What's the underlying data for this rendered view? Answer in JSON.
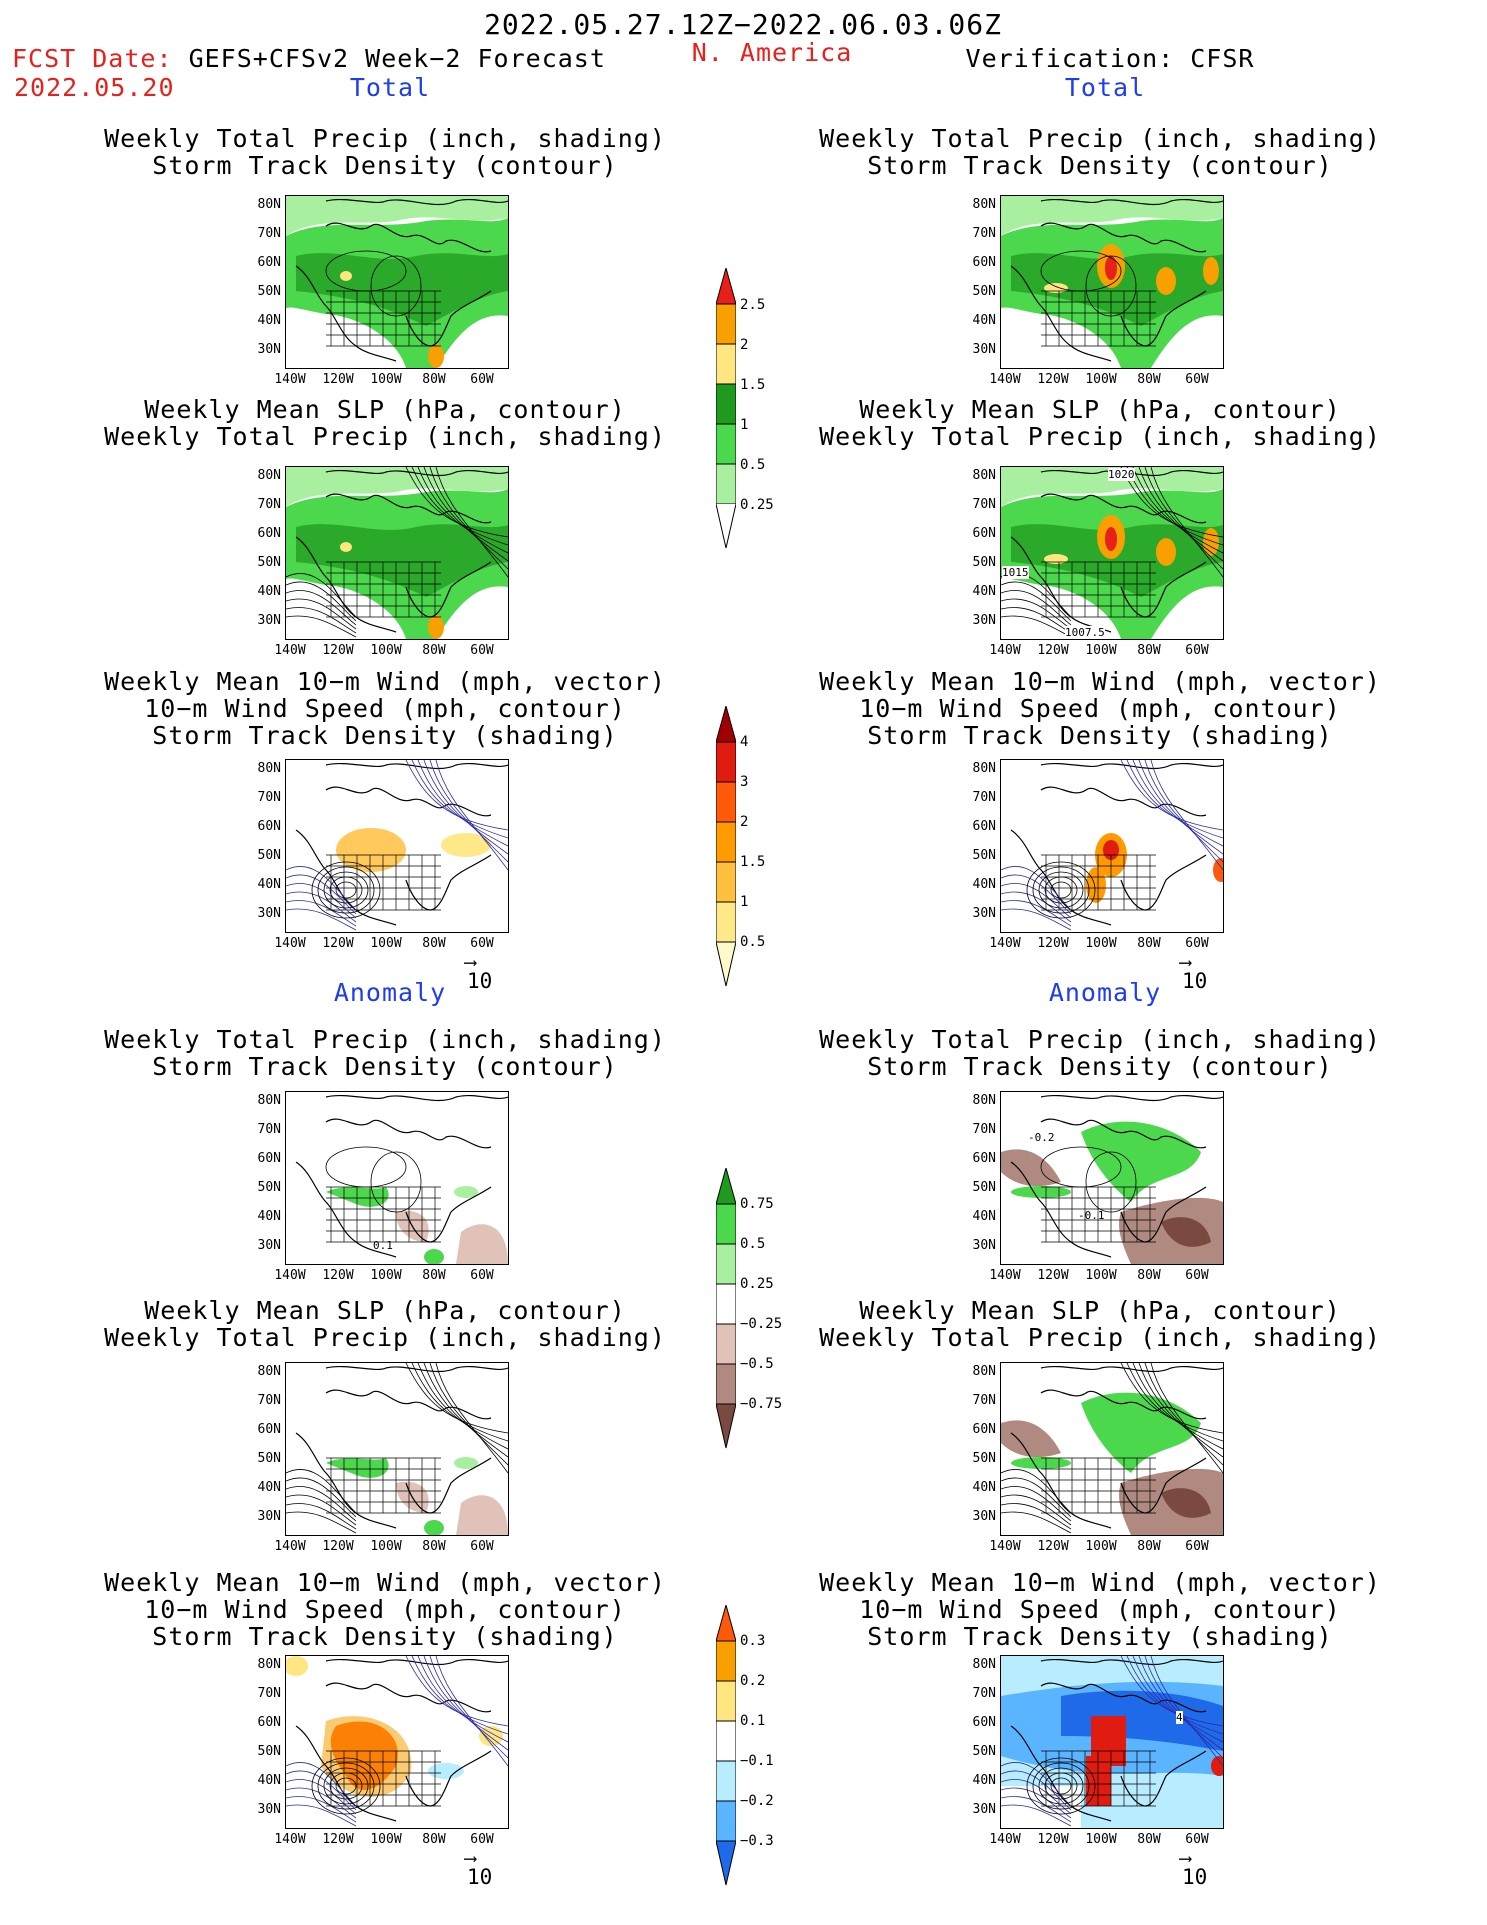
{
  "header": {
    "date_range": "2022.05.27.12Z−2022.06.03.06Z",
    "fcst_label": "FCST Date:",
    "fcst_model": "GEFS+CFSv2 Week−2 Forecast",
    "fcst_date": "2022.05.20",
    "region": "N. America",
    "verification": "Verification: CFSR"
  },
  "sections": {
    "total": "Total",
    "anomaly": "Anomaly"
  },
  "panel_titles": {
    "precip_track": [
      "Weekly Total Precip (inch, shading)",
      "Storm Track Density (contour)"
    ],
    "slp_precip": [
      "Weekly Mean SLP (hPa, contour)",
      "Weekly Total Precip (inch, shading)"
    ],
    "wind_track": [
      "Weekly Mean 10−m Wind (mph, vector)",
      "10−m Wind Speed (mph, contour)",
      "Storm Track Density (shading)"
    ]
  },
  "axes": {
    "lat": [
      "80N",
      "70N",
      "60N",
      "50N",
      "40N",
      "30N"
    ],
    "lon": [
      "140W",
      "120W",
      "100W",
      "80W",
      "60W"
    ]
  },
  "vector_ref": "10",
  "contour_labels": {
    "slp_high": "1020",
    "slp_mid": "1015",
    "slp_low": "1007.5",
    "anom_minus": "-0.2",
    "anom_minus_b": "-0.1",
    "anom_plus": "0.1",
    "track_4": "4"
  },
  "colorbars": {
    "precip_total": {
      "labels": [
        "2.5",
        "2",
        "1.5",
        "1",
        "0.5",
        "0.25"
      ],
      "colors": [
        "#e8201c",
        "#f7a000",
        "#ffe680",
        "#1f9a1f",
        "#4cd84c",
        "#a8f0a0"
      ]
    },
    "track_total": {
      "labels": [
        "4",
        "3",
        "2",
        "1.5",
        "1",
        "0.5"
      ],
      "colors": [
        "#a00000",
        "#e01c10",
        "#ff5a0a",
        "#ff9a00",
        "#ffc040",
        "#ffe888",
        "#fffacc"
      ]
    },
    "precip_anom": {
      "labels": [
        "0.75",
        "0.5",
        "0.25",
        "−0.25",
        "−0.5",
        "−0.75"
      ],
      "colors": [
        "#1f9a1f",
        "#4cd84c",
        "#a8f0a0",
        "#ffffff",
        "#e0c2b8",
        "#b08a80",
        "#7a4a40"
      ]
    },
    "track_anom": {
      "labels": [
        "0.3",
        "0.2",
        "0.1",
        "−0.1",
        "−0.2",
        "−0.3"
      ],
      "colors": [
        "#ff5a0a",
        "#f7a000",
        "#ffe680",
        "#ffffff",
        "#b8ecff",
        "#5ab4ff",
        "#1e6ae8"
      ]
    }
  }
}
